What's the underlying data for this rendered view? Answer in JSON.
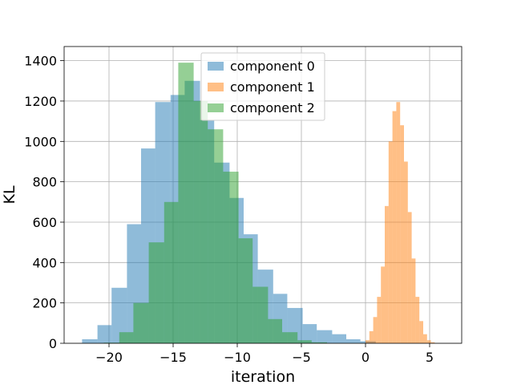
{
  "chart_data": {
    "type": "histogram",
    "title": "",
    "xlabel": "iteration",
    "ylabel": "KL",
    "xlim": [
      -23.5,
      7.5
    ],
    "ylim": [
      0,
      1470
    ],
    "x_ticks": [
      -20,
      -15,
      -10,
      -5,
      0,
      5
    ],
    "x_tick_labels": [
      "−20",
      "−15",
      "−10",
      "−5",
      "0",
      "5"
    ],
    "y_ticks": [
      0,
      200,
      400,
      600,
      800,
      1000,
      1200,
      1400
    ],
    "y_tick_labels": [
      "0",
      "200",
      "400",
      "600",
      "800",
      "1000",
      "1200",
      "1400"
    ],
    "grid": true,
    "legend_position": "top-center",
    "series": [
      {
        "name": "component 0",
        "color": "#1f77b4",
        "alpha": 0.5,
        "bin_edges": [
          -22.1,
          -20.9,
          -19.8,
          -18.6,
          -17.5,
          -16.4,
          -15.2,
          -14.1,
          -12.9,
          -11.8,
          -10.6,
          -9.5,
          -8.4,
          -7.2,
          -6.1,
          -4.9,
          -3.8,
          -2.6,
          -1.5,
          -0.4,
          0.8
        ],
        "counts": [
          20,
          90,
          275,
          590,
          965,
          1195,
          1230,
          1300,
          1105,
          895,
          720,
          540,
          365,
          245,
          175,
          95,
          65,
          45,
          20,
          10
        ]
      },
      {
        "name": "component 1",
        "color": "#ff7f0e",
        "alpha": 0.5,
        "bin_edges": [
          0.0,
          0.3,
          0.6,
          0.9,
          1.2,
          1.5,
          1.8,
          2.1,
          2.4,
          2.7,
          3.0,
          3.3,
          3.6,
          3.9,
          4.2,
          4.5,
          4.8,
          5.1,
          5.4
        ],
        "counts": [
          15,
          60,
          130,
          230,
          380,
          680,
          1000,
          1150,
          1195,
          1080,
          900,
          650,
          420,
          230,
          110,
          45,
          15,
          5
        ]
      },
      {
        "name": "component 2",
        "color": "#2ca02c",
        "alpha": 0.5,
        "bin_edges": [
          -20.4,
          -19.2,
          -18.1,
          -16.9,
          -15.7,
          -14.6,
          -13.4,
          -12.3,
          -11.1,
          -9.9,
          -8.8,
          -7.6,
          -6.5,
          -5.3,
          -4.2,
          -3.0
        ],
        "counts": [
          3,
          55,
          200,
          500,
          700,
          1390,
          1200,
          1060,
          850,
          520,
          280,
          120,
          55,
          15,
          5
        ]
      }
    ]
  }
}
